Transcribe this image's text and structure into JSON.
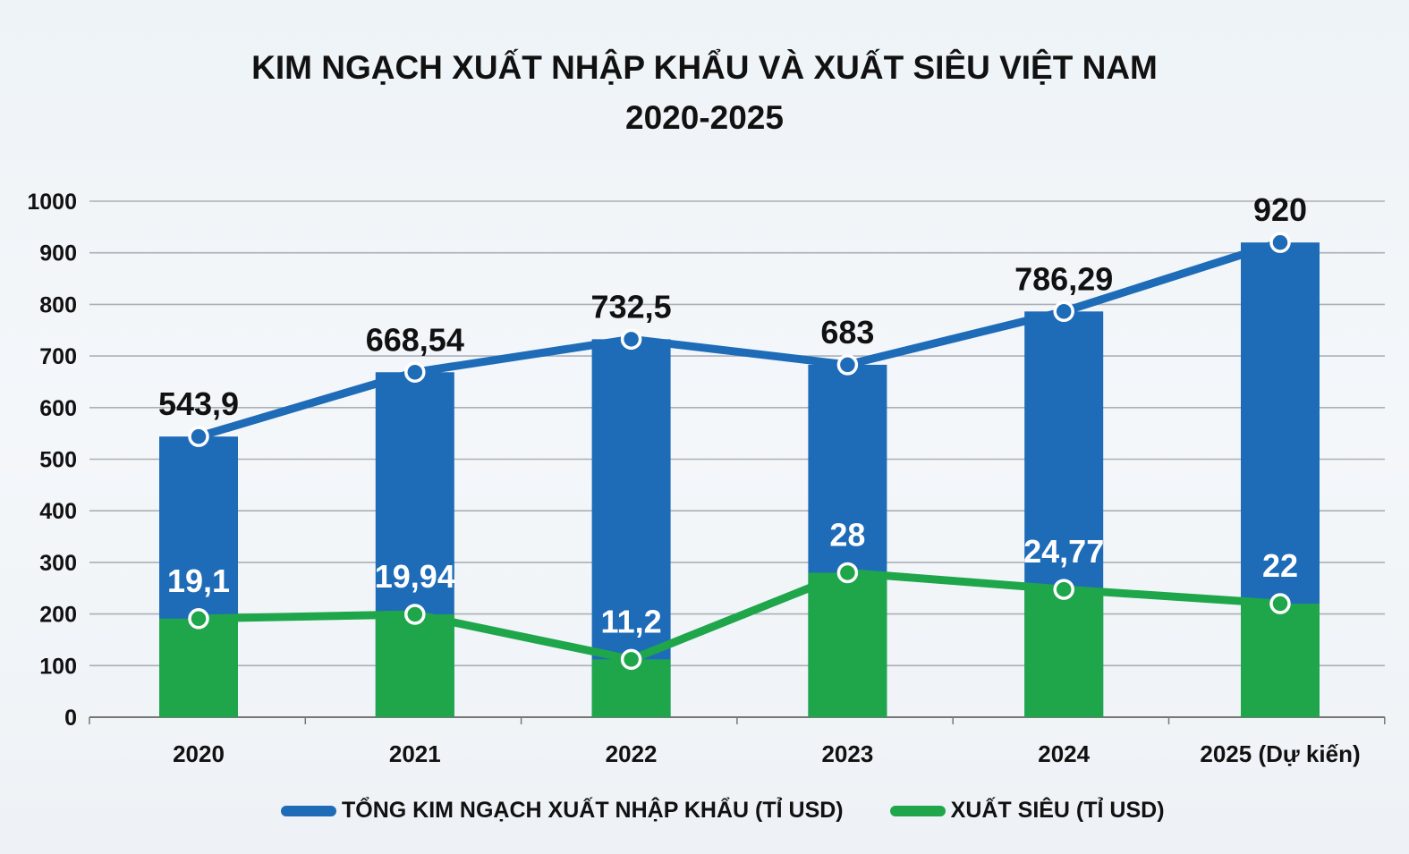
{
  "chart_data": {
    "type": "bar+line",
    "title": [
      "KIM NGẠCH XUẤT NHẬP KHẨU VÀ XUẤT SIÊU VIỆT NAM",
      "2020-2025"
    ],
    "categories": [
      "2020",
      "2021",
      "2022",
      "2023",
      "2024",
      "2025 (Dự kiến)"
    ],
    "ylim": [
      0,
      1000
    ],
    "yticks": [
      0,
      100,
      200,
      300,
      400,
      500,
      600,
      700,
      800,
      900,
      1000
    ],
    "grid": true,
    "legend_position": "bottom",
    "series": [
      {
        "name": "TỔNG KIM NGẠCH XUẤT NHẬP KHẨU (TỈ USD)",
        "color": "#1e6bb8",
        "values": [
          543.9,
          668.54,
          732.5,
          683,
          786.29,
          920
        ],
        "labels": [
          "543,9",
          "668,54",
          "732,5",
          "683",
          "786,29",
          "920"
        ]
      },
      {
        "name": "XUẤT SIÊU (TỈ USD)",
        "color": "#1fa64a",
        "values": [
          19.1,
          19.94,
          11.2,
          28,
          24.77,
          22
        ],
        "labels": [
          "19,1",
          "19,94",
          "11,2",
          "28",
          "24,77",
          "22"
        ]
      }
    ]
  }
}
